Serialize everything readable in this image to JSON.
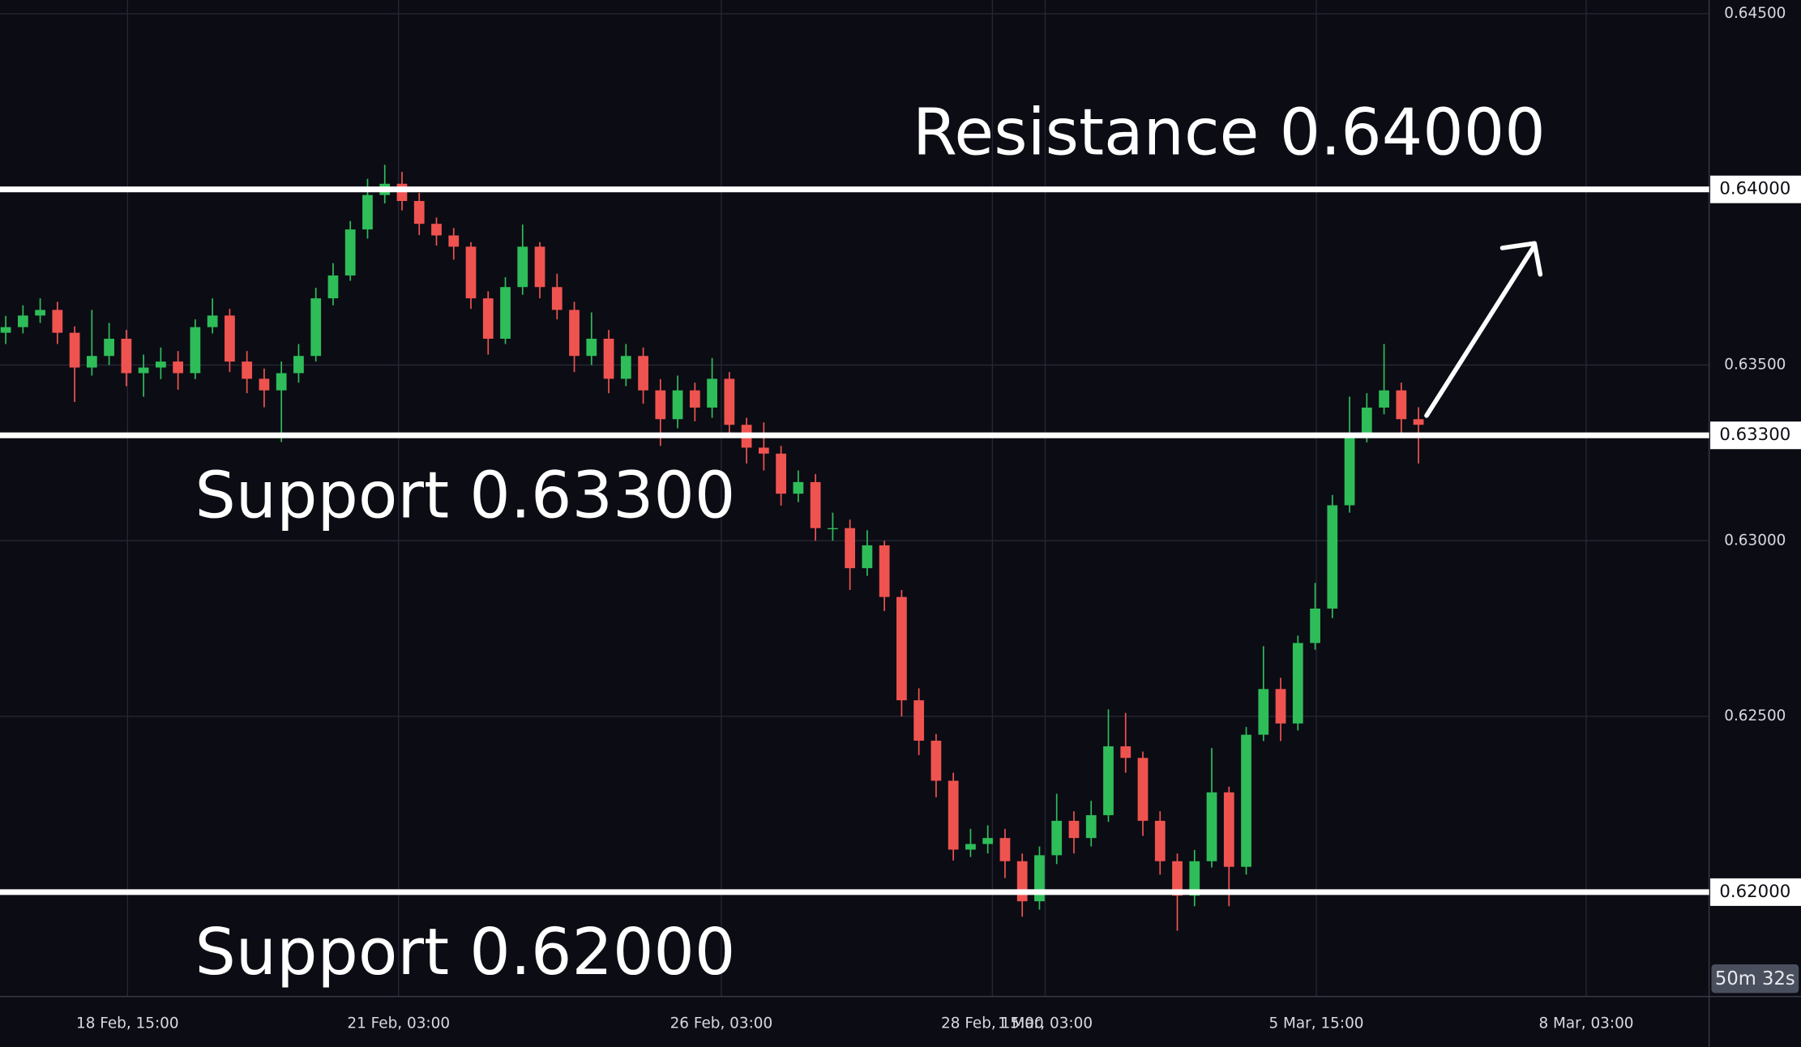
{
  "chart_data": {
    "type": "candlestick",
    "x": [
      0,
      1,
      2,
      3,
      4,
      5,
      6,
      7,
      8,
      9,
      10,
      11,
      12,
      13,
      14,
      15,
      16,
      17,
      18,
      19,
      20,
      21,
      22,
      23,
      24,
      25,
      26,
      27,
      28,
      29,
      30,
      31,
      32,
      33,
      34,
      35,
      36,
      37,
      38,
      39,
      40,
      41,
      42,
      43,
      44,
      45,
      46,
      47,
      48,
      49,
      50,
      51,
      52,
      53,
      54,
      55,
      56,
      57,
      58,
      59,
      60,
      61,
      62,
      63,
      64,
      65,
      66,
      67,
      68,
      69,
      70,
      71,
      72,
      73,
      74,
      75,
      76,
      77,
      78,
      79,
      80,
      81,
      82
    ],
    "open": [
      0.63592,
      0.63608,
      0.63641,
      0.63657,
      0.63592,
      0.63493,
      0.63526,
      0.63575,
      0.63477,
      0.63493,
      0.6351,
      0.63477,
      0.63608,
      0.63641,
      0.6351,
      0.63461,
      0.63428,
      0.63477,
      0.63526,
      0.6369,
      0.63755,
      0.63886,
      0.63984,
      0.64016,
      0.63967,
      0.63902,
      0.63869,
      0.63837,
      0.6369,
      0.63575,
      0.63722,
      0.63837,
      0.63722,
      0.63657,
      0.63526,
      0.63575,
      0.63461,
      0.63526,
      0.63428,
      0.63346,
      0.63428,
      0.63379,
      0.63461,
      0.6333,
      0.63265,
      0.63248,
      0.63134,
      0.63167,
      0.63036,
      0.63036,
      0.62922,
      0.62987,
      0.6284,
      0.62546,
      0.62431,
      0.62317,
      0.62121,
      0.62137,
      0.62154,
      0.62088,
      0.61974,
      0.62105,
      0.62203,
      0.62154,
      0.62219,
      0.62415,
      0.62382,
      0.62203,
      0.62088,
      0.6199,
      0.62088,
      0.62284,
      0.62072,
      0.62448,
      0.62578,
      0.6248,
      0.62709,
      0.62807,
      0.63101,
      0.63297,
      0.63379,
      0.63428,
      0.63346
    ],
    "high": [
      0.6364,
      0.6367,
      0.6369,
      0.6368,
      0.6361,
      0.63657,
      0.6362,
      0.636,
      0.6353,
      0.6355,
      0.6354,
      0.6363,
      0.6369,
      0.6366,
      0.6354,
      0.6349,
      0.6351,
      0.6356,
      0.6372,
      0.6379,
      0.6391,
      0.6403,
      0.6407,
      0.6405,
      0.6399,
      0.6392,
      0.6389,
      0.6385,
      0.6371,
      0.6375,
      0.639,
      0.6385,
      0.6376,
      0.6368,
      0.6365,
      0.636,
      0.6356,
      0.6355,
      0.6346,
      0.6347,
      0.6345,
      0.6352,
      0.6348,
      0.6335,
      0.63337,
      0.6327,
      0.632,
      0.6319,
      0.6308,
      0.6306,
      0.6303,
      0.63,
      0.6286,
      0.6258,
      0.6245,
      0.6234,
      0.6218,
      0.6219,
      0.6218,
      0.6211,
      0.6213,
      0.6228,
      0.6223,
      0.6226,
      0.6252,
      0.6251,
      0.624,
      0.6223,
      0.6211,
      0.6212,
      0.6241,
      0.623,
      0.6247,
      0.627,
      0.6261,
      0.6273,
      0.6288,
      0.6313,
      0.6341,
      0.6342,
      0.6356,
      0.6345,
      0.6338
    ],
    "low": [
      0.6356,
      0.6359,
      0.6362,
      0.6356,
      0.63395,
      0.6347,
      0.635,
      0.6344,
      0.6341,
      0.6346,
      0.6343,
      0.6346,
      0.6359,
      0.6348,
      0.6342,
      0.6338,
      0.63281,
      0.6345,
      0.6351,
      0.6367,
      0.6374,
      0.6386,
      0.6396,
      0.6394,
      0.6387,
      0.6384,
      0.638,
      0.6366,
      0.6353,
      0.6356,
      0.637,
      0.6369,
      0.6363,
      0.6348,
      0.635,
      0.6342,
      0.6344,
      0.6339,
      0.6327,
      0.6332,
      0.6334,
      0.6335,
      0.633,
      0.6322,
      0.632,
      0.631,
      0.6311,
      0.63,
      0.63,
      0.6286,
      0.629,
      0.628,
      0.625,
      0.6239,
      0.6227,
      0.6209,
      0.621,
      0.6211,
      0.6204,
      0.6193,
      0.6195,
      0.6208,
      0.6211,
      0.6213,
      0.622,
      0.6234,
      0.6216,
      0.6205,
      0.6189,
      0.6196,
      0.6207,
      0.6196,
      0.6205,
      0.6243,
      0.6243,
      0.6246,
      0.6269,
      0.6278,
      0.6308,
      0.6328,
      0.6336,
      0.633,
      0.6322
    ],
    "close": [
      0.63608,
      0.63641,
      0.63657,
      0.63592,
      0.63493,
      0.63526,
      0.63575,
      0.63477,
      0.63493,
      0.6351,
      0.63477,
      0.63608,
      0.63641,
      0.6351,
      0.63461,
      0.63428,
      0.63477,
      0.63526,
      0.6369,
      0.63755,
      0.63886,
      0.63984,
      0.64016,
      0.63967,
      0.63902,
      0.63869,
      0.63837,
      0.6369,
      0.63575,
      0.63722,
      0.63837,
      0.63722,
      0.63657,
      0.63526,
      0.63575,
      0.63461,
      0.63526,
      0.63428,
      0.63346,
      0.63428,
      0.63379,
      0.63461,
      0.6333,
      0.63265,
      0.63248,
      0.63134,
      0.63167,
      0.63036,
      0.63036,
      0.62922,
      0.62987,
      0.6284,
      0.62546,
      0.62431,
      0.62317,
      0.62121,
      0.62137,
      0.62154,
      0.62088,
      0.61974,
      0.62105,
      0.62203,
      0.62154,
      0.62219,
      0.62415,
      0.62382,
      0.62203,
      0.62088,
      0.6199,
      0.62088,
      0.62284,
      0.62072,
      0.62448,
      0.62578,
      0.6248,
      0.62709,
      0.62807,
      0.63101,
      0.63297,
      0.63379,
      0.63428,
      0.63346,
      0.6333
    ],
    "up_color": "#2ebd59",
    "down_color": "#ef5350",
    "xlim": [
      -0.333,
      98.867
    ],
    "xticks": [
      {
        "value": 7.067,
        "label": "18 Feb, 15:00"
      },
      {
        "value": 22.8,
        "label": "21 Feb, 03:00"
      },
      {
        "value": 41.533,
        "label": "26 Feb, 03:00"
      },
      {
        "value": 57.267,
        "label": "28 Feb, 15:00"
      },
      {
        "value": 60.333,
        "label": "1 Mar, 03:00"
      },
      {
        "value": 76.067,
        "label": "5 Mar, 15:00"
      },
      {
        "value": 91.733,
        "label": "8 Mar, 03:00"
      }
    ],
    "ylim": [
      0.61703,
      0.64539
    ],
    "yticks": [
      {
        "value": 0.645,
        "label": "0.64500"
      },
      {
        "value": 0.64,
        "label": "0.64000"
      },
      {
        "value": 0.635,
        "label": "0.63500"
      },
      {
        "value": 0.63,
        "label": "0.63000"
      },
      {
        "value": 0.625,
        "label": "0.62500"
      },
      {
        "value": 0.62,
        "label": "0.62000"
      }
    ],
    "grid": true,
    "levels": [
      {
        "value": 0.64,
        "axis_label": "0.64000",
        "annotation": "Resistance 0.64000"
      },
      {
        "value": 0.633,
        "axis_label": "0.63300",
        "annotation": "Support 0.63300"
      },
      {
        "value": 0.62,
        "axis_label": "0.62000",
        "annotation": "Support 0.62000"
      }
    ],
    "countdown": "50m 32s"
  }
}
